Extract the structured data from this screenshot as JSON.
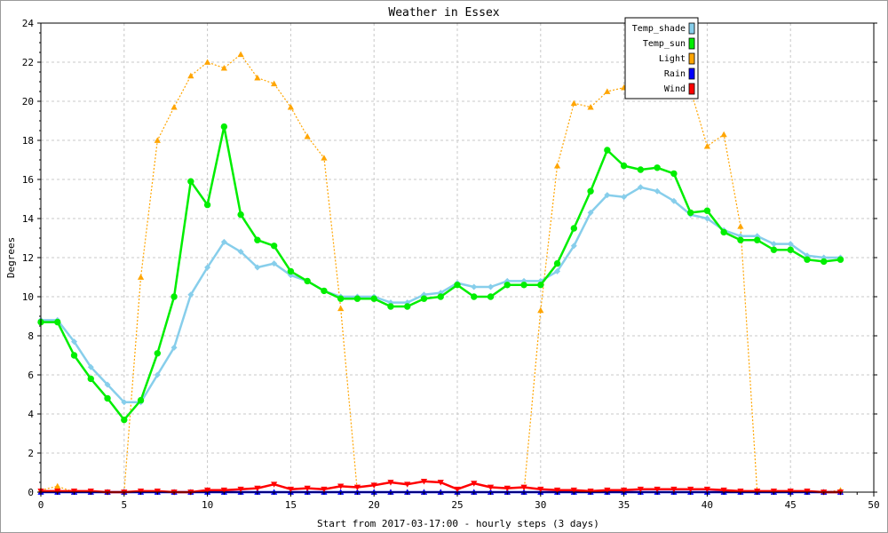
{
  "chart_data": {
    "type": "line",
    "title": "Weather in Essex",
    "xlabel": "Start from 2017-03-17:00 - hourly steps (3 days)",
    "ylabel": "Degrees",
    "xlim": [
      0,
      50
    ],
    "ylim": [
      0,
      24
    ],
    "x_ticks": [
      0,
      5,
      10,
      15,
      20,
      25,
      30,
      35,
      40,
      45,
      50
    ],
    "y_ticks": [
      0,
      2,
      4,
      6,
      8,
      10,
      12,
      14,
      16,
      18,
      20,
      22,
      24
    ],
    "grid": true,
    "legend_position": "top-right",
    "series": [
      {
        "name": "Temp_shade",
        "color": "#87ceeb",
        "marker": "diamond",
        "x": [
          0,
          1,
          2,
          3,
          4,
          5,
          6,
          7,
          8,
          9,
          10,
          11,
          12,
          13,
          14,
          15,
          16,
          17,
          18,
          19,
          20,
          21,
          22,
          23,
          24,
          25,
          26,
          27,
          28,
          29,
          30,
          31,
          32,
          33,
          34,
          35,
          36,
          37,
          38,
          39,
          40,
          41,
          42,
          43,
          44,
          45,
          46,
          47,
          48
        ],
        "values": [
          8.8,
          8.8,
          7.7,
          6.4,
          5.5,
          4.6,
          4.6,
          6.0,
          7.4,
          10.1,
          11.5,
          12.8,
          12.3,
          11.5,
          11.7,
          11.1,
          10.8,
          10.3,
          10.0,
          10.0,
          10.0,
          9.7,
          9.7,
          10.1,
          10.2,
          10.7,
          10.5,
          10.5,
          10.8,
          10.8,
          10.8,
          11.3,
          12.6,
          14.3,
          15.2,
          15.1,
          15.6,
          15.4,
          14.9,
          14.2,
          14.0,
          13.4,
          13.1,
          13.1,
          12.7,
          12.7,
          12.1,
          12.0,
          12.0
        ]
      },
      {
        "name": "Temp_sun",
        "color": "#00ee00",
        "marker": "circle",
        "x": [
          0,
          1,
          2,
          3,
          4,
          5,
          6,
          7,
          8,
          9,
          10,
          11,
          12,
          13,
          14,
          15,
          16,
          17,
          18,
          19,
          20,
          21,
          22,
          23,
          24,
          25,
          26,
          27,
          28,
          29,
          30,
          31,
          32,
          33,
          34,
          35,
          36,
          37,
          38,
          39,
          40,
          41,
          42,
          43,
          44,
          45,
          46,
          47,
          48
        ],
        "values": [
          8.7,
          8.7,
          7.0,
          5.8,
          4.8,
          3.7,
          4.7,
          7.1,
          10.0,
          15.9,
          14.7,
          18.7,
          14.2,
          12.9,
          12.6,
          11.3,
          10.8,
          10.3,
          9.9,
          9.9,
          9.9,
          9.5,
          9.5,
          9.9,
          10.0,
          10.6,
          10.0,
          10.0,
          10.6,
          10.6,
          10.6,
          11.7,
          13.5,
          15.4,
          17.5,
          16.7,
          16.5,
          16.6,
          16.3,
          14.3,
          14.4,
          13.3,
          12.9,
          12.9,
          12.4,
          12.4,
          11.9,
          11.8,
          11.9
        ]
      },
      {
        "name": "Light",
        "color": "#ffa500",
        "marker": "triangle-up",
        "x": [
          0,
          1,
          2,
          3,
          4,
          5,
          6,
          7,
          8,
          9,
          10,
          11,
          12,
          13,
          14,
          15,
          16,
          17,
          18,
          19,
          20,
          21,
          22,
          23,
          24,
          25,
          26,
          27,
          28,
          29,
          30,
          31,
          32,
          33,
          34,
          35,
          36,
          37,
          38,
          39,
          40,
          41,
          42,
          43,
          44,
          45,
          46,
          47,
          48
        ],
        "values": [
          0.1,
          0.3,
          0,
          0,
          0,
          0,
          11.0,
          18.0,
          19.7,
          21.3,
          22.0,
          21.7,
          22.4,
          21.2,
          20.9,
          19.7,
          18.2,
          17.1,
          9.4,
          0,
          0,
          0,
          0,
          0,
          0,
          0,
          0,
          0,
          0,
          0,
          9.3,
          16.7,
          19.9,
          19.7,
          20.5,
          20.7,
          21.0,
          20.8,
          21.2,
          20.6,
          17.7,
          18.3,
          13.6,
          0,
          0,
          0,
          0,
          0,
          0.1
        ]
      },
      {
        "name": "Rain",
        "color": "#0000ff",
        "marker": "triangle-up",
        "x": [
          0,
          1,
          2,
          3,
          4,
          5,
          6,
          7,
          8,
          9,
          10,
          11,
          12,
          13,
          14,
          15,
          16,
          17,
          18,
          19,
          20,
          21,
          22,
          23,
          24,
          25,
          26,
          27,
          28,
          29,
          30,
          31,
          32,
          33,
          34,
          35,
          36,
          37,
          38,
          39,
          40,
          41,
          42,
          43,
          44,
          45,
          46,
          47,
          48
        ],
        "values": [
          0,
          0,
          0,
          0,
          0,
          0,
          0,
          0,
          0,
          0,
          0,
          0,
          0,
          0,
          0,
          0,
          0,
          0,
          0,
          0,
          0,
          0,
          0,
          0,
          0,
          0,
          0,
          0,
          0,
          0,
          0,
          0,
          0,
          0,
          0,
          0,
          0,
          0,
          0,
          0,
          0,
          0,
          0,
          0,
          0,
          0,
          0,
          0,
          0
        ]
      },
      {
        "name": "Wind",
        "color": "#ff0000",
        "marker": "triangle-down",
        "x": [
          0,
          1,
          2,
          3,
          4,
          5,
          6,
          7,
          8,
          9,
          10,
          11,
          12,
          13,
          14,
          15,
          16,
          17,
          18,
          19,
          20,
          21,
          22,
          23,
          24,
          25,
          26,
          27,
          28,
          29,
          30,
          31,
          32,
          33,
          34,
          35,
          36,
          37,
          38,
          39,
          40,
          41,
          42,
          43,
          44,
          45,
          46,
          47,
          48
        ],
        "values": [
          0.05,
          0.05,
          0.05,
          0.05,
          0,
          0,
          0.05,
          0.05,
          0,
          0,
          0.1,
          0.1,
          0.15,
          0.2,
          0.4,
          0.15,
          0.2,
          0.15,
          0.3,
          0.25,
          0.35,
          0.5,
          0.4,
          0.55,
          0.5,
          0.15,
          0.45,
          0.25,
          0.2,
          0.25,
          0.15,
          0.1,
          0.1,
          0.05,
          0.1,
          0.1,
          0.15,
          0.15,
          0.15,
          0.15,
          0.15,
          0.1,
          0.05,
          0.05,
          0.05,
          0.05,
          0.05,
          0,
          0
        ]
      }
    ]
  }
}
